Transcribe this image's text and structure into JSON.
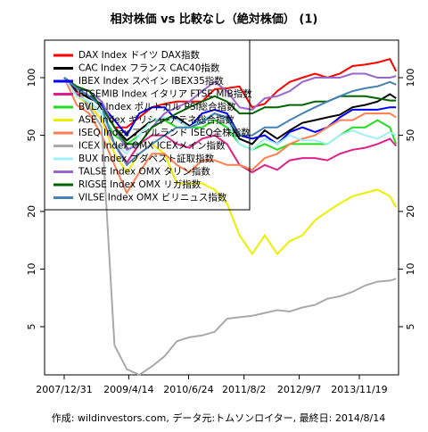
{
  "chart_data": {
    "type": "line",
    "title": "相対株価 vs 比較なし（絶対株価） (1)",
    "footer": "作成: wildinvestors.com, データ元:トムソンロイター, 最終日: 2014/8/14",
    "log_y": true,
    "grid": false,
    "legend": "topleft",
    "x": [
      "2007/12/31",
      "2008/3/31",
      "2008/6/30",
      "2008/9/30",
      "2008/12/31",
      "2009/3/31",
      "2009/6/30",
      "2009/9/30",
      "2009/12/31",
      "2010/3/31",
      "2010/6/30",
      "2010/9/30",
      "2010/12/31",
      "2011/3/31",
      "2011/6/30",
      "2011/9/30",
      "2011/12/31",
      "2012/3/31",
      "2012/6/30",
      "2012/9/30",
      "2012/12/31",
      "2013/3/31",
      "2013/6/30",
      "2013/9/30",
      "2013/12/31",
      "2014/3/31",
      "2014/6/30",
      "2014/8/14"
    ],
    "xlim": [
      "2007/8/10",
      "2014/9/1"
    ],
    "xticks": [
      "2007/12/31",
      "2009/4/14",
      "2010/6/24",
      "2011/8/2",
      "2012/9/7",
      "2013/11/19"
    ],
    "ylim": [
      2.8,
      157
    ],
    "yticks": [
      5,
      10,
      20,
      50,
      100
    ],
    "series": [
      {
        "name": "DAX Index ドイツ DAX指数",
        "color": "#ff0000",
        "values": [
          100,
          82,
          80,
          72,
          55,
          55,
          62,
          70,
          73,
          75,
          75,
          75,
          87,
          88,
          90,
          70,
          73,
          85,
          95,
          100,
          105,
          100,
          105,
          115,
          117,
          120,
          125,
          108
        ]
      },
      {
        "name": "CAC Index フランス CAC40指数",
        "color": "#000000",
        "values": [
          100,
          85,
          78,
          73,
          55,
          47,
          53,
          60,
          60,
          62,
          56,
          60,
          65,
          60,
          48,
          45,
          53,
          48,
          53,
          58,
          60,
          62,
          64,
          70,
          72,
          75,
          82,
          78
        ]
      },
      {
        "name": "IBEX Index スペイン IBEX35指数",
        "color": "#0000ff",
        "values": [
          100,
          88,
          80,
          72,
          60,
          50,
          65,
          70,
          70,
          60,
          55,
          65,
          68,
          65,
          50,
          48,
          50,
          45,
          52,
          55,
          52,
          55,
          62,
          68,
          68,
          68,
          70,
          70
        ]
      },
      {
        "name": "FTSEMIB Index イタリア FTSE MIB指数",
        "color": "#e0208a",
        "values": [
          100,
          82,
          72,
          60,
          45,
          36,
          45,
          50,
          50,
          45,
          43,
          48,
          50,
          45,
          35,
          32,
          35,
          33,
          37,
          38,
          38,
          37,
          40,
          42,
          43,
          45,
          48,
          44
        ]
      },
      {
        "name": "BVLX Index ポルトガル PSI総合指数",
        "color": "#22dd22",
        "values": [
          100,
          80,
          75,
          65,
          50,
          45,
          50,
          60,
          60,
          55,
          55,
          55,
          60,
          55,
          45,
          42,
          45,
          42,
          45,
          45,
          45,
          45,
          50,
          55,
          55,
          60,
          55,
          45
        ]
      },
      {
        "name": "ASE Index ギリシャ アテネ総合指数",
        "color": "#eeee00",
        "values": [
          100,
          80,
          72,
          60,
          40,
          32,
          40,
          45,
          40,
          28,
          28,
          28,
          26,
          22,
          15,
          12,
          15,
          12,
          14,
          15,
          18,
          20,
          22,
          24,
          25,
          26,
          24,
          21
        ]
      },
      {
        "name": "ISEQ Index アイルランド ISEQ全株指数",
        "color": "#ff7f50",
        "values": [
          100,
          72,
          65,
          50,
          35,
          25,
          32,
          40,
          40,
          35,
          32,
          37,
          37,
          35,
          35,
          33,
          38,
          40,
          45,
          48,
          50,
          55,
          60,
          60,
          65,
          65,
          65,
          62
        ]
      },
      {
        "name": "ICEX Index OMX ICEXメイン指数",
        "color": "#a9a9a9",
        "values": [
          100,
          88,
          70,
          55,
          4,
          3,
          2.8,
          3.1,
          3.5,
          4.2,
          4.4,
          4.5,
          4.7,
          5.5,
          5.6,
          5.7,
          5.9,
          6.1,
          6.0,
          6.3,
          6.5,
          7.0,
          7.2,
          7.6,
          8.2,
          8.6,
          8.7,
          8.9
        ]
      },
      {
        "name": "BUX Index ブダペスト証取指数",
        "color": "#a0f0f8",
        "values": [
          100,
          80,
          75,
          65,
          45,
          40,
          50,
          60,
          62,
          60,
          55,
          60,
          65,
          60,
          45,
          42,
          48,
          45,
          50,
          47,
          47,
          45,
          50,
          53,
          50,
          48,
          52,
          50
        ]
      },
      {
        "name": "TALSE Index OMX タリン指数",
        "color": "#9966cc",
        "values": [
          100,
          88,
          85,
          75,
          55,
          42,
          45,
          55,
          65,
          70,
          75,
          85,
          95,
          85,
          70,
          68,
          78,
          80,
          85,
          95,
          100,
          100,
          100,
          105,
          105,
          100,
          100,
          102
        ]
      },
      {
        "name": "RIGSE Index OMX リガ指数",
        "color": "#006400",
        "values": [
          100,
          90,
          85,
          70,
          55,
          45,
          45,
          55,
          60,
          65,
          70,
          75,
          80,
          75,
          65,
          65,
          70,
          70,
          72,
          72,
          75,
          75,
          80,
          80,
          80,
          78,
          76,
          76
        ]
      },
      {
        "name": "VILSE Index OMX ビリニュス指数",
        "color": "#4682b4",
        "values": [
          100,
          88,
          80,
          70,
          45,
          35,
          40,
          45,
          50,
          55,
          55,
          58,
          65,
          62,
          50,
          50,
          55,
          55,
          60,
          65,
          70,
          75,
          80,
          85,
          88,
          90,
          95,
          92
        ]
      }
    ]
  }
}
